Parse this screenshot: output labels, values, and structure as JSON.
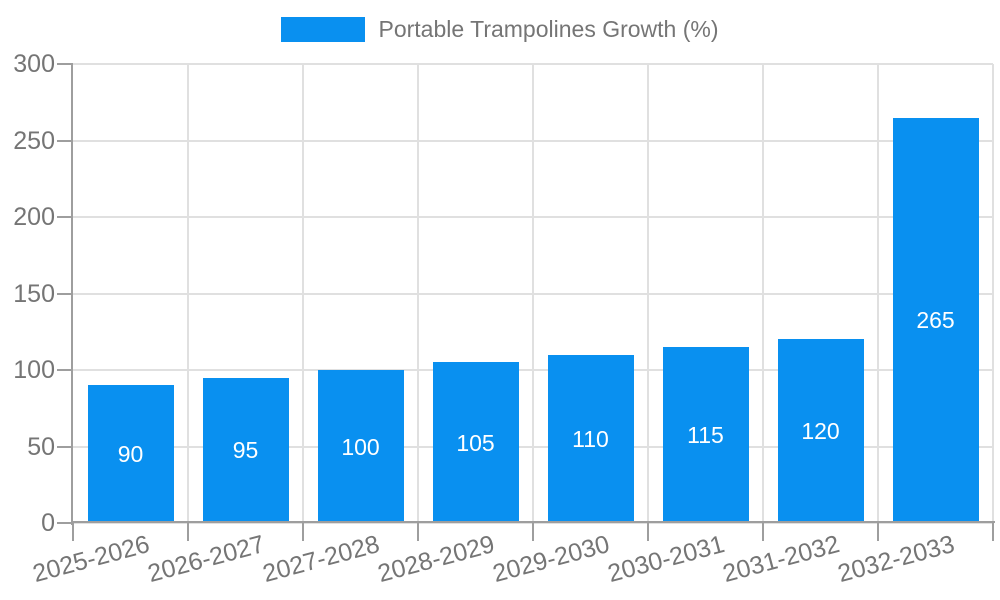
{
  "legend": {
    "swatch_icon": "series-color-swatch",
    "label": "Portable Trampolines Growth (%)"
  },
  "chart_data": {
    "type": "bar",
    "title": "Portable Trampolines Growth (%)",
    "categories": [
      "2025-2026",
      "2026-2027",
      "2027-2028",
      "2028-2029",
      "2029-2030",
      "2030-2031",
      "2031-2032",
      "2032-2033"
    ],
    "values": [
      90,
      95,
      100,
      105,
      110,
      115,
      120,
      265
    ],
    "value_labels": [
      "90",
      "95",
      "100",
      "105",
      "110",
      "115",
      "120",
      "265"
    ],
    "xlabel": "",
    "ylabel": "",
    "ylim": [
      0,
      300
    ],
    "yticks": [
      0,
      50,
      100,
      150,
      200,
      250,
      300
    ],
    "grid": true,
    "legend_position": "top-center",
    "x_tick_rotation_deg": -15,
    "colors": {
      "bar": "#0990f0",
      "value_label": "#ffffff",
      "gridline": "#e0e0e0",
      "axis": "#9e9e9e",
      "tick_text": "#757575",
      "background": "#ffffff"
    }
  }
}
